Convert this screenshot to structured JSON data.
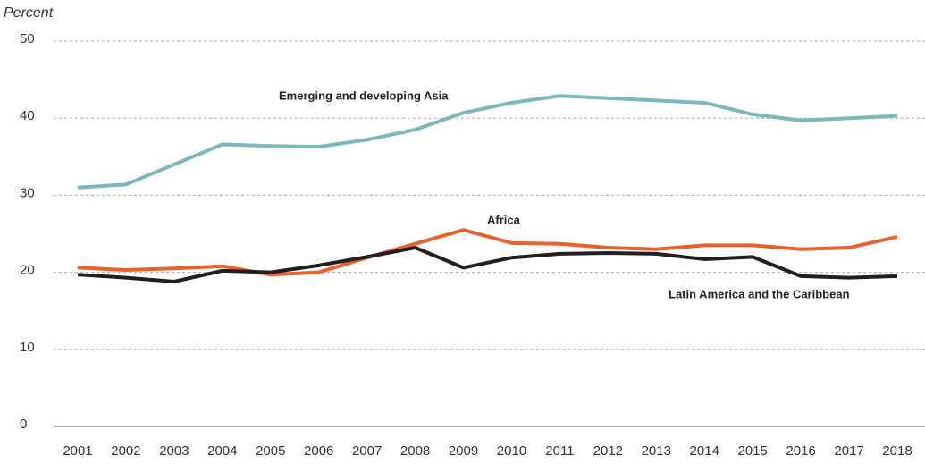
{
  "chart_data": {
    "type": "line",
    "y_axis_label": "Percent",
    "categories": [
      "2001",
      "2002",
      "2003",
      "2004",
      "2005",
      "2006",
      "2007",
      "2008",
      "2009",
      "2010",
      "2011",
      "2012",
      "2013",
      "2014",
      "2015",
      "2016",
      "2017",
      "2018"
    ],
    "series": [
      {
        "name": "Emerging and developing Asia",
        "color": "#7ab8bc",
        "values": [
          31.0,
          31.4,
          34.0,
          36.6,
          36.4,
          36.3,
          37.2,
          38.5,
          40.7,
          42.0,
          42.9,
          42.6,
          42.3,
          42.0,
          40.5,
          39.7,
          40.0,
          40.3
        ]
      },
      {
        "name": "Africa",
        "color": "#e8622a",
        "values": [
          20.6,
          20.3,
          20.5,
          20.8,
          19.7,
          20.0,
          21.9,
          23.7,
          25.5,
          23.8,
          23.7,
          23.2,
          23.0,
          23.5,
          23.5,
          23.0,
          23.2,
          24.6
        ]
      },
      {
        "name": "Latin America and the Caribbean",
        "color": "#231f20",
        "values": [
          19.7,
          19.3,
          18.8,
          20.2,
          20.0,
          20.9,
          22.0,
          23.2,
          20.6,
          21.9,
          22.4,
          22.5,
          22.4,
          21.7,
          22.0,
          19.5,
          19.3,
          19.5
        ]
      }
    ],
    "ylim": [
      0,
      50
    ],
    "yticks": [
      0,
      10,
      20,
      30,
      40,
      50
    ],
    "grid": true
  }
}
